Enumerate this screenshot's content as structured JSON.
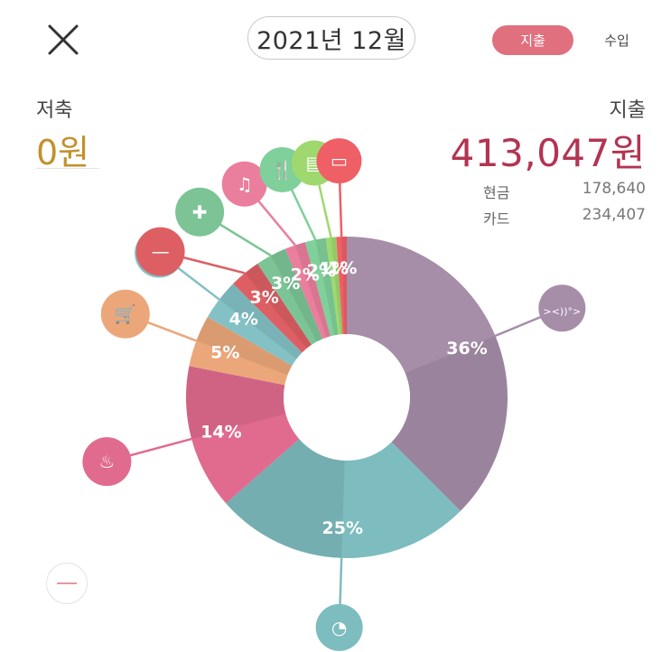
{
  "header": {
    "month_label": "2021년 12월",
    "tabs": {
      "expense": "지출",
      "income": "수입"
    },
    "active_color": "#e0707e"
  },
  "summary": {
    "savings_label": "저축",
    "savings_value": "0원",
    "savings_color": "#c1922c",
    "expense_label": "지출",
    "expense_value": "413,047원",
    "expense_color": "#b33452",
    "payment": [
      {
        "name": "현금",
        "value": "178,640"
      },
      {
        "name": "카드",
        "value": "234,407"
      }
    ]
  },
  "chart_data": {
    "type": "pie",
    "donut": true,
    "slices": [
      {
        "label": "36%",
        "value": 36,
        "icon": "fish-icon",
        "color": "#a68da8"
      },
      {
        "label": "25%",
        "value": 25,
        "icon": "person-icon",
        "color": "#7dbcbf"
      },
      {
        "label": "14%",
        "value": 14,
        "icon": "bath-icon",
        "color": "#e06b8f"
      },
      {
        "label": "5%",
        "value": 5,
        "icon": "cart-icon",
        "color": "#eba77a"
      },
      {
        "label": "4%",
        "value": 4,
        "icon": "tree-icon",
        "color": "#83c1c5"
      },
      {
        "label": "3%",
        "value": 3,
        "icon": "minus-icon",
        "color": "#dd5f63"
      },
      {
        "label": "3%",
        "value": 3,
        "icon": "medical-kit-icon",
        "color": "#7cc496"
      },
      {
        "label": "2%",
        "value": 2,
        "icon": "music-icon",
        "color": "#ea7e9d"
      },
      {
        "label": "2%",
        "value": 2,
        "icon": "dining-icon",
        "color": "#7fd09a"
      },
      {
        "label": "1%",
        "value": 1,
        "icon": "document-icon",
        "color": "#9fd86e"
      },
      {
        "label": "1%",
        "value": 1,
        "icon": "bus-icon",
        "color": "#ee5f66"
      }
    ]
  }
}
